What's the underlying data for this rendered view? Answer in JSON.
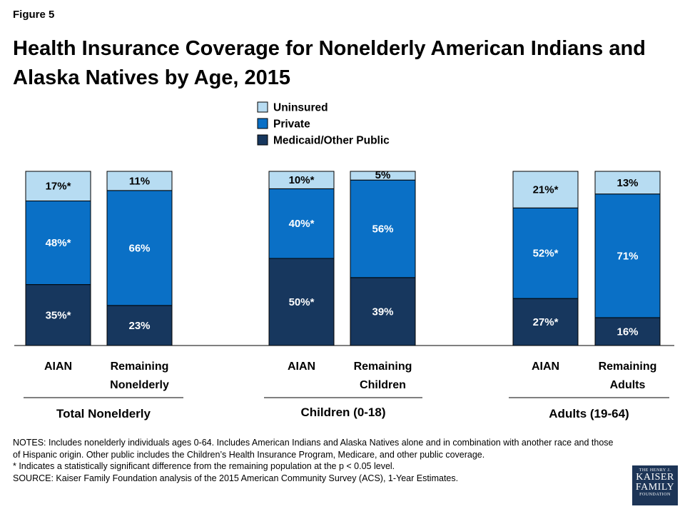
{
  "figure_label": "Figure 5",
  "chart_data": {
    "type": "bar",
    "stacked": true,
    "percent_scale": [
      0,
      100
    ],
    "title": "Health Insurance Coverage for Nonelderly American Indians and Alaska Natives by Age, 2015",
    "legend_position": "top-center",
    "series": [
      {
        "name": "Medicaid/Other Public",
        "color": "#17375e",
        "values": [
          35,
          23,
          50,
          39,
          27,
          16
        ],
        "labels": [
          "35%*",
          "23%",
          "50%*",
          "39%",
          "27%*",
          "16%"
        ]
      },
      {
        "name": "Private",
        "color": "#0a70c6",
        "values": [
          48,
          66,
          40,
          56,
          52,
          71
        ],
        "labels": [
          "48%*",
          "66%",
          "40%*",
          "56%",
          "52%*",
          "71%"
        ]
      },
      {
        "name": "Uninsured",
        "color": "#b7dcf2",
        "values": [
          17,
          11,
          10,
          5,
          21,
          13
        ],
        "labels": [
          "17%*",
          "11%",
          "10%*",
          "5%",
          "21%*",
          "13%"
        ]
      }
    ],
    "legend_order": [
      "Uninsured",
      "Private",
      "Medicaid/Other Public"
    ],
    "categories": [
      [
        "AIAN"
      ],
      [
        "Remaining",
        "Nonelderly"
      ],
      [
        "AIAN"
      ],
      [
        "Remaining",
        "Children"
      ],
      [
        "AIAN"
      ],
      [
        "Remaining",
        "Adults"
      ]
    ],
    "groups": [
      "Total Nonelderly",
      "Children (0-18)",
      "Adults (19-64)"
    ]
  },
  "notes": [
    "NOTES: Includes nonelderly individuals ages 0-64. Includes American Indians and Alaska Natives alone and in combination with another race and those of Hispanic origin. Other public includes the Children’s Health Insurance Program, Medicare, and other public coverage.",
    "* Indicates a statistically significant difference from the remaining population at the p < 0.05 level.",
    "SOURCE: Kaiser Family Foundation analysis of the 2015 American Community Survey (ACS), 1-Year Estimates."
  ],
  "logo": {
    "line1": "THE HENRY J.",
    "line2": "KAISER",
    "line3": "FAMILY",
    "line4": "FOUNDATION"
  }
}
